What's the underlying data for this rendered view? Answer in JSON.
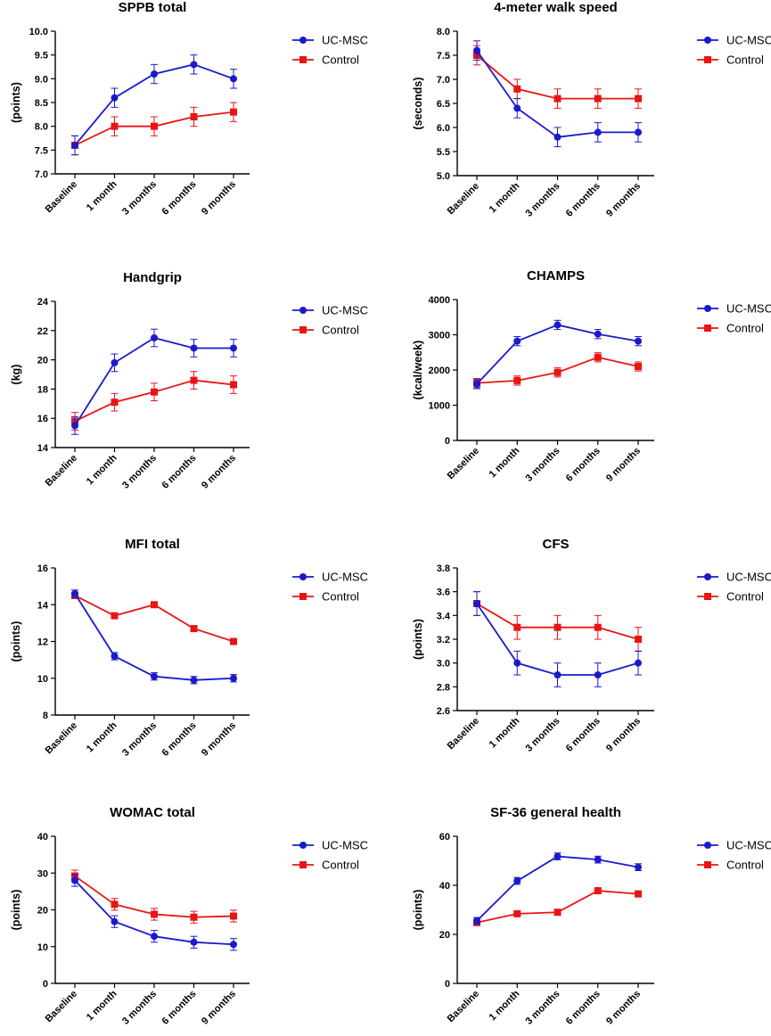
{
  "chart_data": [
    {
      "type": "line",
      "title": "SPPB total",
      "ylabel": "(points)",
      "categories": [
        "Baseline",
        "1 month",
        "3 months",
        "6 months",
        "9 months"
      ],
      "ylim": [
        7.0,
        10.0
      ],
      "yticks": [
        7.0,
        7.5,
        8.0,
        8.5,
        9.0,
        9.5,
        10.0
      ],
      "ytick_labels": [
        "7.0",
        "7.5",
        "8.0",
        "8.5",
        "9.0",
        "9.5",
        "10.0"
      ],
      "series": [
        {
          "name": "UC-MSC",
          "values": [
            7.6,
            8.6,
            9.1,
            9.3,
            9.0
          ],
          "err": [
            0.2,
            0.2,
            0.2,
            0.2,
            0.2
          ]
        },
        {
          "name": "Control",
          "values": [
            7.6,
            8.0,
            8.0,
            8.2,
            8.3
          ],
          "err": [
            0.2,
            0.2,
            0.2,
            0.2,
            0.2
          ]
        }
      ]
    },
    {
      "type": "line",
      "title": "4-meter walk speed",
      "ylabel": "(seconds)",
      "categories": [
        "Baseline",
        "1 month",
        "3 months",
        "6 months",
        "9 months"
      ],
      "ylim": [
        5.0,
        8.0
      ],
      "yticks": [
        5.0,
        5.5,
        6.0,
        6.5,
        7.0,
        7.5,
        8.0
      ],
      "ytick_labels": [
        "5.0",
        "5.5",
        "6.0",
        "6.5",
        "7.0",
        "7.5",
        "8.0"
      ],
      "series": [
        {
          "name": "UC-MSC",
          "values": [
            7.6,
            6.4,
            5.8,
            5.9,
            5.9
          ],
          "err": [
            0.2,
            0.2,
            0.2,
            0.2,
            0.2
          ]
        },
        {
          "name": "Control",
          "values": [
            7.5,
            6.8,
            6.6,
            6.6,
            6.6
          ],
          "err": [
            0.2,
            0.2,
            0.2,
            0.2,
            0.2
          ]
        }
      ]
    },
    {
      "type": "line",
      "title": "Handgrip",
      "ylabel": "(kg)",
      "categories": [
        "Baseline",
        "1 month",
        "3 months",
        "6 months",
        "9 months"
      ],
      "ylim": [
        14,
        24
      ],
      "yticks": [
        14,
        16,
        18,
        20,
        22,
        24
      ],
      "ytick_labels": [
        "14",
        "16",
        "18",
        "20",
        "22",
        "24"
      ],
      "series": [
        {
          "name": "UC-MSC",
          "values": [
            15.5,
            19.8,
            21.5,
            20.8,
            20.8
          ],
          "err": [
            0.6,
            0.6,
            0.6,
            0.6,
            0.6
          ]
        },
        {
          "name": "Control",
          "values": [
            15.8,
            17.1,
            17.8,
            18.6,
            18.3
          ],
          "err": [
            0.6,
            0.6,
            0.6,
            0.6,
            0.6
          ]
        }
      ]
    },
    {
      "type": "line",
      "title": "CHAMPS",
      "ylabel": "(kcal/week)",
      "categories": [
        "Baseline",
        "1 month",
        "3 months",
        "6 months",
        "9 months"
      ],
      "ylim": [
        0,
        4000
      ],
      "yticks": [
        0,
        1000,
        2000,
        3000,
        4000
      ],
      "ytick_labels": [
        "0",
        "1000",
        "2000",
        "3000",
        "4000"
      ],
      "series": [
        {
          "name": "UC-MSC",
          "values": [
            1600,
            2820,
            3280,
            3020,
            2820
          ],
          "err": [
            130,
            130,
            130,
            130,
            130
          ]
        },
        {
          "name": "Control",
          "values": [
            1630,
            1700,
            1930,
            2360,
            2100
          ],
          "err": [
            130,
            130,
            130,
            130,
            130
          ]
        }
      ]
    },
    {
      "type": "line",
      "title": "MFI total",
      "ylabel": "(points)",
      "categories": [
        "Baseline",
        "1 month",
        "3 months",
        "6 months",
        "9 months"
      ],
      "ylim": [
        8,
        16
      ],
      "yticks": [
        8,
        10,
        12,
        14,
        16
      ],
      "ytick_labels": [
        "8",
        "10",
        "12",
        "14",
        "16"
      ],
      "series": [
        {
          "name": "UC-MSC",
          "values": [
            14.6,
            11.2,
            10.1,
            9.9,
            10.0
          ],
          "err": [
            0.2,
            0.2,
            0.2,
            0.2,
            0.2
          ]
        },
        {
          "name": "Control",
          "values": [
            14.5,
            13.4,
            14.0,
            12.7,
            12.0
          ],
          "err": [
            0.15,
            0.15,
            0.15,
            0.15,
            0.15
          ]
        }
      ]
    },
    {
      "type": "line",
      "title": "CFS",
      "ylabel": "(points)",
      "categories": [
        "Baseline",
        "1 month",
        "3 months",
        "6 months",
        "9 months"
      ],
      "ylim": [
        2.6,
        3.8
      ],
      "yticks": [
        2.6,
        2.8,
        3.0,
        3.2,
        3.4,
        3.6,
        3.8
      ],
      "ytick_labels": [
        "2.6",
        "2.8",
        "3.0",
        "3.2",
        "3.4",
        "3.6",
        "3.8"
      ],
      "series": [
        {
          "name": "UC-MSC",
          "values": [
            3.5,
            3.0,
            2.9,
            2.9,
            3.0
          ],
          "err": [
            0.1,
            0.1,
            0.1,
            0.1,
            0.1
          ]
        },
        {
          "name": "Control",
          "values": [
            3.5,
            3.3,
            3.3,
            3.3,
            3.2
          ],
          "err": [
            0.1,
            0.1,
            0.1,
            0.1,
            0.1
          ]
        }
      ]
    },
    {
      "type": "line",
      "title": "WOMAC total",
      "ylabel": "(points)",
      "categories": [
        "Baseline",
        "1 month",
        "3 months",
        "6 months",
        "9 months"
      ],
      "ylim": [
        0,
        40
      ],
      "yticks": [
        0,
        10,
        20,
        30,
        40
      ],
      "ytick_labels": [
        "0",
        "10",
        "20",
        "30",
        "40"
      ],
      "series": [
        {
          "name": "UC-MSC",
          "values": [
            28,
            16.8,
            12.8,
            11.2,
            10.6
          ],
          "err": [
            1.6,
            1.6,
            1.6,
            1.6,
            1.6
          ]
        },
        {
          "name": "Control",
          "values": [
            29.2,
            21.5,
            18.8,
            18.0,
            18.3
          ],
          "err": [
            1.6,
            1.6,
            1.6,
            1.6,
            1.6
          ]
        }
      ]
    },
    {
      "type": "line",
      "title": "SF-36 general health",
      "ylabel": "(points)",
      "categories": [
        "Baseline",
        "1 month",
        "3 months",
        "6 months",
        "9 months"
      ],
      "ylim": [
        0,
        60
      ],
      "yticks": [
        0,
        20,
        40,
        60
      ],
      "ytick_labels": [
        "0",
        "20",
        "40",
        "60"
      ],
      "series": [
        {
          "name": "UC-MSC",
          "values": [
            25.5,
            41.8,
            51.8,
            50.5,
            47.4
          ],
          "err": [
            1.4,
            1.4,
            1.4,
            1.4,
            1.4
          ]
        },
        {
          "name": "Control",
          "values": [
            24.8,
            28.4,
            29.0,
            37.8,
            36.5
          ],
          "err": [
            0.8,
            0.8,
            0.8,
            0.8,
            0.8
          ]
        }
      ]
    }
  ],
  "colors": {
    "UC-MSC": "#1a1acc",
    "Control": "#e81515"
  },
  "markers": {
    "UC-MSC": "circle",
    "Control": "square"
  },
  "legend_position": "right"
}
